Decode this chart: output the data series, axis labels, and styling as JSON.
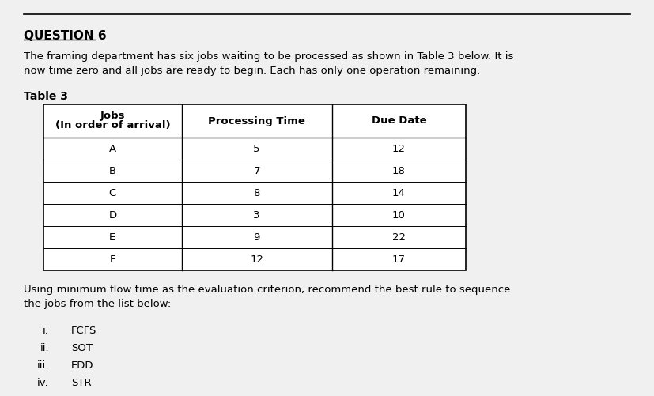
{
  "title": "QUESTION 6",
  "intro_text": "The framing department has six jobs waiting to be processed as shown in Table 3 below. It is\nnow time zero and all jobs are ready to begin. Each has only one operation remaining.",
  "table_title": "Table 3",
  "col_headers": [
    "Jobs\n(In order of arrival)",
    "Processing Time",
    "Due Date"
  ],
  "jobs": [
    "A",
    "B",
    "C",
    "D",
    "E",
    "F"
  ],
  "processing_times": [
    5,
    7,
    8,
    3,
    9,
    12
  ],
  "due_dates": [
    12,
    18,
    14,
    10,
    22,
    17
  ],
  "closing_text": "Using minimum flow time as the evaluation criterion, recommend the best rule to sequence\nthe jobs from the list below:",
  "options": [
    {
      "num": "i.",
      "text": "FCFS"
    },
    {
      "num": "ii.",
      "text": "SOT"
    },
    {
      "num": "iii.",
      "text": "EDD"
    },
    {
      "num": "iv.",
      "text": "STR"
    }
  ],
  "bg_color": "#f0f0f0",
  "table_border_color": "#000000",
  "font_size_title": 11,
  "font_size_body": 9.5,
  "font_size_table": 9.5
}
